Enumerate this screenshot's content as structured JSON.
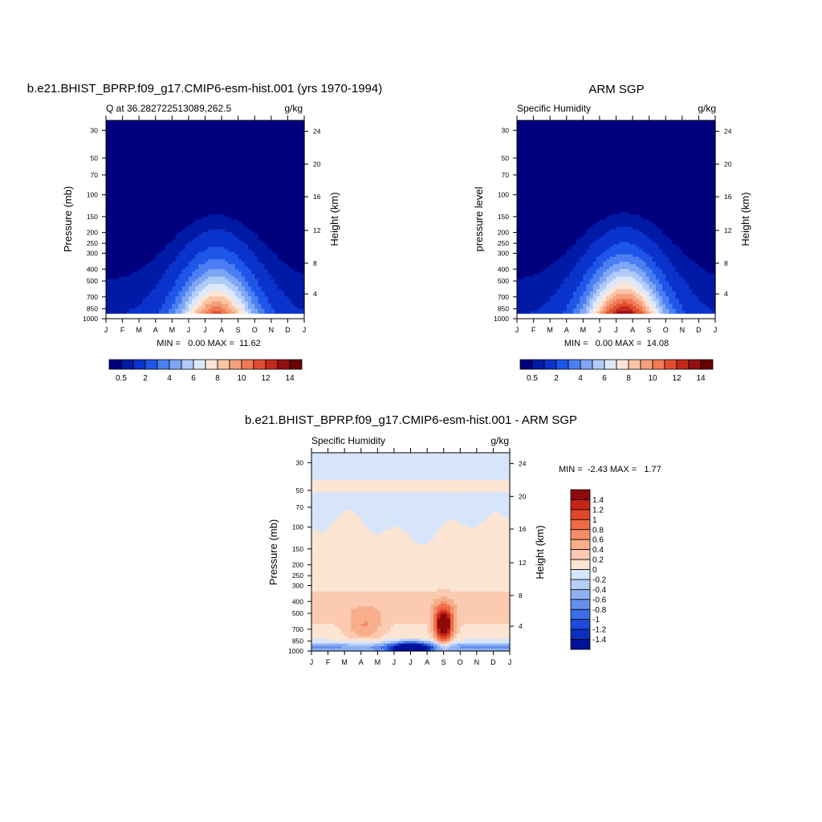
{
  "chart_data": [
    {
      "type": "contour",
      "title": "b.e21.BHIST_BPRP.f09_g17.CMIP6-esm-hist.001 (yrs 1970-1994)",
      "left_label": "Q at 36.282722513089,262.5",
      "right_label": "g/kg",
      "ylabel": "Pressure (mb)",
      "ylabel_right": "Height (km)",
      "months": [
        "J",
        "F",
        "M",
        "A",
        "M",
        "J",
        "J",
        "A",
        "S",
        "O",
        "N",
        "D",
        "J"
      ],
      "pressure_ticks": [
        "30",
        "50",
        "70",
        "100",
        "150",
        "200",
        "250",
        "300",
        "400",
        "500",
        "700",
        "850",
        "1000"
      ],
      "height_ticks": [
        "24",
        "20",
        "16",
        "12",
        "8",
        "4"
      ],
      "stats": "MIN =   0.00 MAX =  11.62",
      "min": 0.0,
      "max": 11.62,
      "peak_month_index": 6.7,
      "colorbar_labels": [
        "0.5",
        "2",
        "4",
        "6",
        "8",
        "10",
        "12",
        "14"
      ]
    },
    {
      "type": "contour",
      "title": "ARM SGP",
      "left_label": "Specific Humidity",
      "right_label": "g/kg",
      "ylabel": "pressure level",
      "ylabel_right": "Height (km)",
      "months": [
        "J",
        "F",
        "M",
        "A",
        "M",
        "J",
        "J",
        "A",
        "S",
        "O",
        "N",
        "D",
        "J"
      ],
      "pressure_ticks": [
        "30",
        "50",
        "70",
        "100",
        "150",
        "200",
        "250",
        "300",
        "400",
        "500",
        "700",
        "850",
        "1000"
      ],
      "height_ticks": [
        "24",
        "20",
        "16",
        "12",
        "8",
        "4"
      ],
      "stats": "MIN =   0.00 MAX =  14.08",
      "min": 0.0,
      "max": 14.08,
      "peak_month_index": 6.5,
      "colorbar_labels": [
        "0.5",
        "2",
        "4",
        "6",
        "8",
        "10",
        "12",
        "14"
      ]
    },
    {
      "type": "contour",
      "title": "b.e21.BHIST_BPRP.f09_g17.CMIP6-esm-hist.001 - ARM SGP",
      "left_label": "Specific Humidity",
      "right_label": "g/kg",
      "ylabel": "Pressure (mb)",
      "ylabel_right": "Height (km)",
      "months": [
        "J",
        "F",
        "M",
        "A",
        "M",
        "J",
        "J",
        "A",
        "S",
        "O",
        "N",
        "D",
        "J"
      ],
      "pressure_ticks": [
        "30",
        "50",
        "70",
        "100",
        "150",
        "200",
        "250",
        "300",
        "400",
        "500",
        "700",
        "850",
        "1000"
      ],
      "height_ticks": [
        "24",
        "20",
        "16",
        "12",
        "8",
        "4"
      ],
      "stats": "MIN =  -2.43 MAX =   1.77",
      "min": -2.43,
      "max": 1.77,
      "colorbar_labels": [
        "1.4",
        "1.2",
        "1",
        "0.8",
        "0.6",
        "0.4",
        "0.2",
        "0",
        "-0.2",
        "-0.4",
        "-0.6",
        "-0.8",
        "-1",
        "-1.2",
        "-1.4"
      ]
    }
  ],
  "colors": {
    "seq": [
      "#00007f",
      "#001aa6",
      "#0a33cc",
      "#1f56e8",
      "#4a7ff2",
      "#7ea6f5",
      "#b0cbf8",
      "#dde9fb",
      "#fce6d7",
      "#fac4a6",
      "#f5a07c",
      "#f07a53",
      "#e04e2f",
      "#c4291b",
      "#951111",
      "#6a0000"
    ],
    "diff_pos": [
      "#fde5d3",
      "#fbcab0",
      "#f8ae8b",
      "#f48e67",
      "#ee6a45",
      "#e2462a",
      "#c62418",
      "#8e0a0a"
    ],
    "diff_neg": [
      "#d6e5fa",
      "#b6cdf6",
      "#8fb0f1",
      "#6690ec",
      "#3e6ee6",
      "#1d4cdc",
      "#0b2fc2",
      "#00119a"
    ],
    "white": "#ffffff"
  }
}
